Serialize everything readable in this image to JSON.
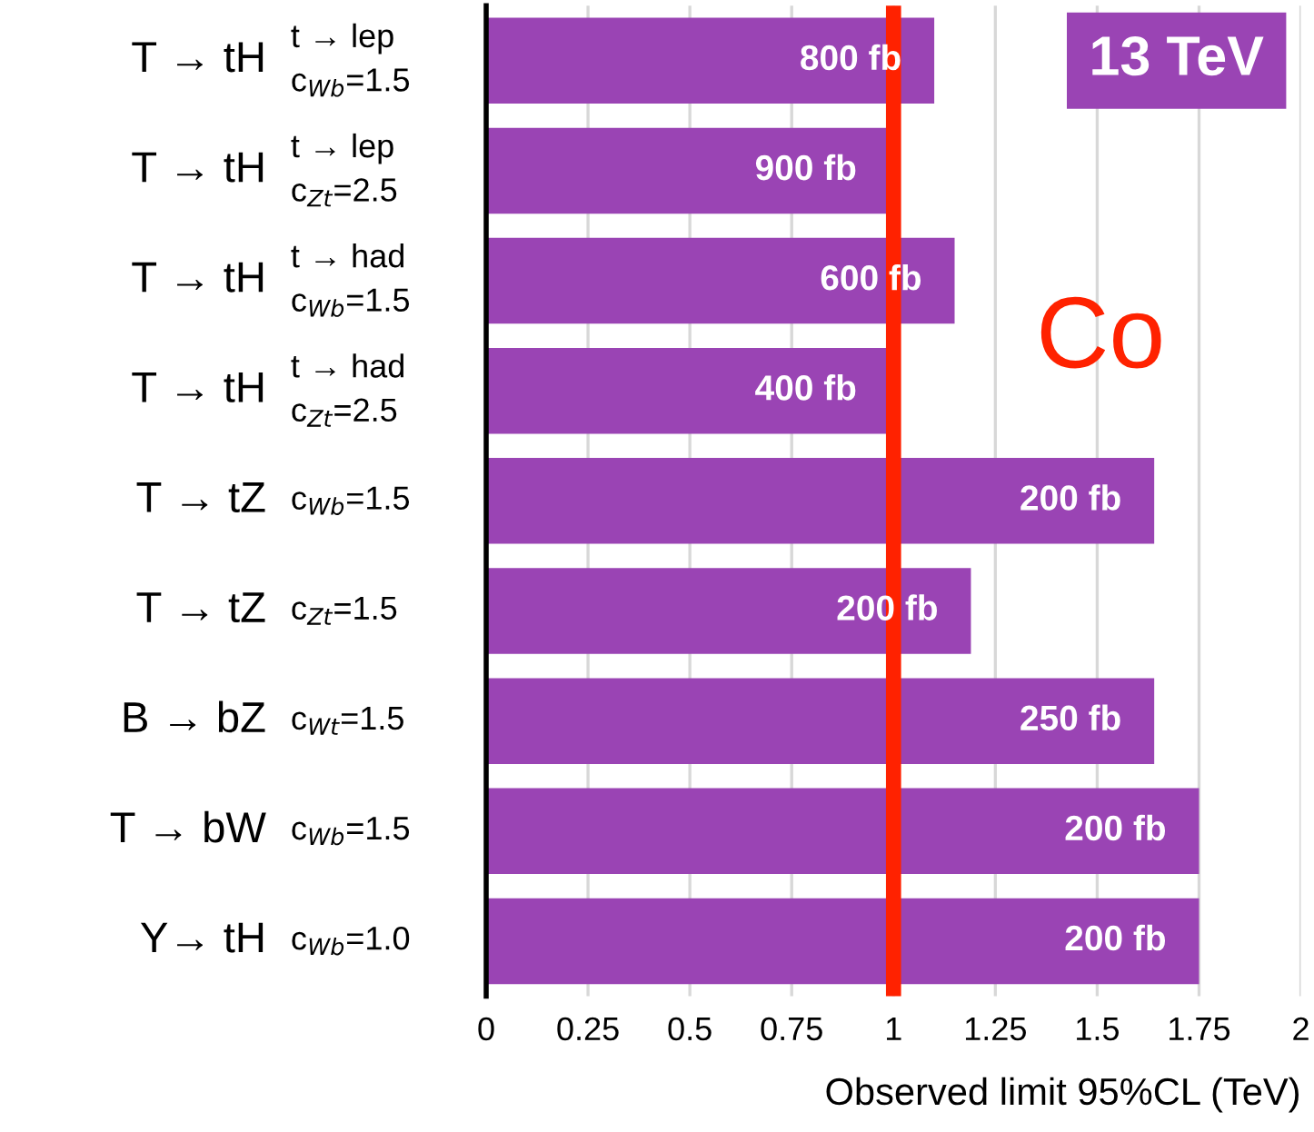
{
  "chart_data": {
    "type": "bar",
    "orientation": "horizontal",
    "categories": [
      "T → tH\nt → lep\nc$_{Wb}$=1.5",
      "T → tH\nt → lep\nc$_{Zt}$=2.5",
      "T → tH\nt → had\nc$_{Wb}$=1.5",
      "T → tH\nt → had\nc$_{Zt}$=2.5",
      "T → tZ\nc$_{Wb}$=1.5",
      "T → tZ\nc$_{Zt}$=1.5",
      "B → bZ\nc$_{Wt}$=1.5",
      "T → bW\nc$_{Wb}$=1.5",
      "Y→ tH\nc$_{Wb}$=1.0"
    ],
    "values": [
      1.1,
      0.99,
      1.15,
      0.99,
      1.64,
      1.19,
      1.64,
      1.75,
      1.75
    ],
    "color": "#9a44b4",
    "xlabel": "Observed limit 95%CL (TeV)",
    "xlim": [
      0,
      2
    ],
    "xticks": [
      0,
      0.25,
      0.5,
      0.75,
      1,
      1.25,
      1.5,
      1.75,
      2
    ],
    "grid": "x",
    "ref_lines": [
      {
        "axis": "x",
        "value": 1,
        "color": "#ff2200"
      }
    ],
    "annotations": [
      "13 TeV",
      "Co",
      {
        "text": "800 fb",
        "x": 1.1,
        "y": "T → tH\nt → lep\nc$_{Wb}$=1.5"
      },
      {
        "text": "900 fb",
        "x": 0.99,
        "y": "T → tH\nt → lep\nc$_{Zt}$=2.5"
      },
      {
        "text": "600 fb",
        "x": 1.15,
        "y": "T → tH\nt → had\nc$_{Wb}$=1.5"
      },
      {
        "text": "400 fb",
        "x": 0.99,
        "y": "T → tH\nt → had\nc$_{Zt}$=2.5"
      },
      {
        "text": "200 fb",
        "x": 1.64,
        "y": "T → tZ\nc$_{Wb}$=1.5"
      },
      {
        "text": "200 fb",
        "x": 1.19,
        "y": "T → tZ\nc$_{Zt}$=1.5"
      },
      {
        "text": "250 fb",
        "x": 1.64,
        "y": "B → bZ\nc$_{Wt}$=1.5"
      },
      {
        "text": "200 fb",
        "x": 1.75,
        "y": "T → bW\nc$_{Wb}$=1.5"
      },
      {
        "text": "200 fb",
        "x": 1.75,
        "y": "Y→ tH\nc$_{Wb}$=1.0"
      }
    ]
  }
}
